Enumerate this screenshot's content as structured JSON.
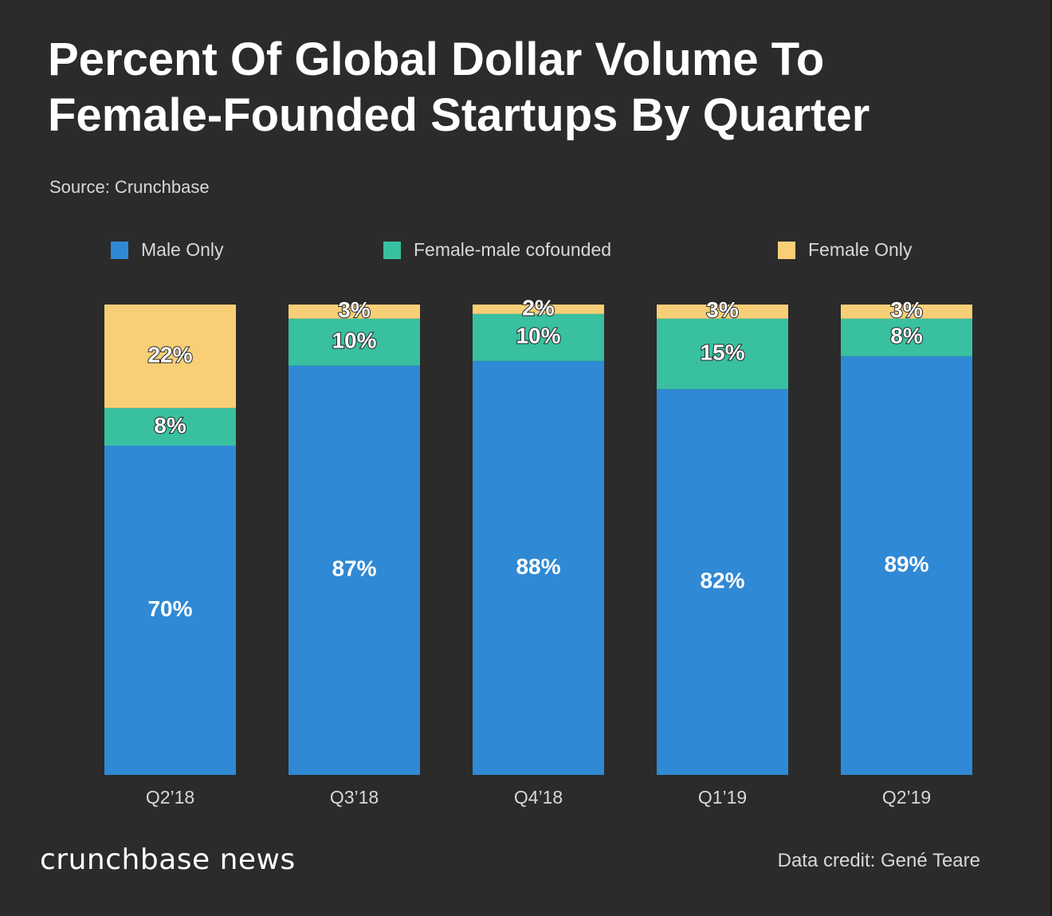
{
  "chart_data": {
    "type": "bar",
    "stacked": true,
    "title_lines": [
      "Percent Of Global Dollar Volume To",
      "Female-Founded Startups By Quarter"
    ],
    "source": "Source: Crunchbase",
    "categories": [
      "Q2’18",
      "Q3’18",
      "Q4’18",
      "Q1’19",
      "Q2’19"
    ],
    "series": [
      {
        "name": "Male Only",
        "color": "#2f89d4",
        "values": [
          70,
          87,
          88,
          82,
          89
        ],
        "labels": [
          "70%",
          "87%",
          "88%",
          "82%",
          "89%"
        ]
      },
      {
        "name": "Female-male cofounded",
        "color": "#38c0a0",
        "values": [
          8,
          10,
          10,
          15,
          8
        ],
        "labels": [
          "8%",
          "10%",
          "10%",
          "15%",
          "8%"
        ]
      },
      {
        "name": "Female Only",
        "color": "#f8cf77",
        "values": [
          22,
          3,
          2,
          3,
          3
        ],
        "labels": [
          "22%",
          "3%",
          "2%",
          "3%",
          "3%"
        ]
      }
    ],
    "ylim": [
      0,
      100
    ],
    "legend": "top"
  },
  "footer": {
    "brand": "crunchbase news",
    "credit": "Data credit: Gené Teare"
  }
}
